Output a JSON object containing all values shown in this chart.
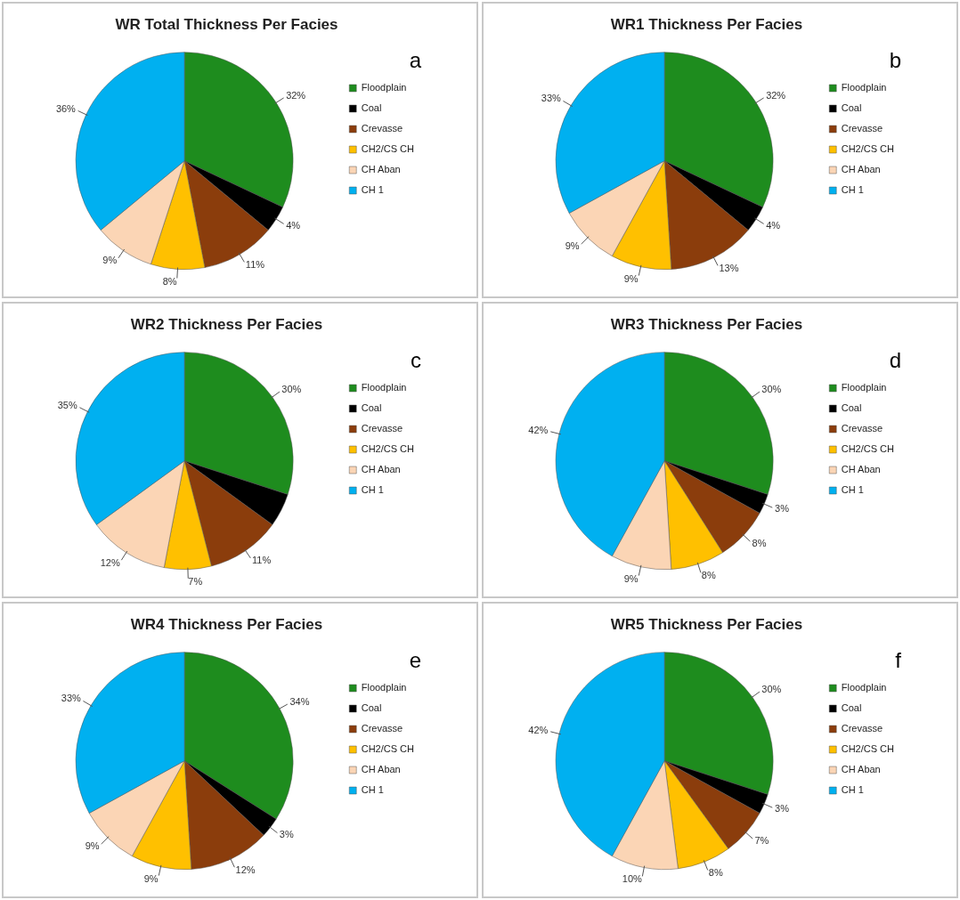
{
  "chart_data": [
    {
      "type": "pie",
      "title": "WR Total Thickness Per Facies",
      "categories": [
        "Floodplain",
        "Coal",
        "Crevasse",
        "CH2/CS CH",
        "CH Aban",
        "CH 1"
      ],
      "values": [
        32,
        4,
        11,
        8,
        9,
        36
      ],
      "value_labels": [
        "32%",
        "4%",
        "11%",
        "8%",
        "9%",
        "36%"
      ],
      "colors": [
        "#1e8c1e",
        "#000000",
        "#8b3d0c",
        "#ffc000",
        "#fbd5b5",
        "#00b0f0"
      ],
      "legend": "right",
      "annotations": [
        "a"
      ]
    },
    {
      "type": "pie",
      "title": "WR1 Thickness Per Facies",
      "categories": [
        "Floodplain",
        "Coal",
        "Crevasse",
        "CH2/CS CH",
        "CH Aban",
        "CH 1"
      ],
      "values": [
        32,
        4,
        13,
        9,
        9,
        33
      ],
      "value_labels": [
        "32%",
        "4%",
        "13%",
        "9%",
        "9%",
        "33%"
      ],
      "colors": [
        "#1e8c1e",
        "#000000",
        "#8b3d0c",
        "#ffc000",
        "#fbd5b5",
        "#00b0f0"
      ],
      "legend": "right",
      "annotations": [
        "b"
      ]
    },
    {
      "type": "pie",
      "title": "WR2 Thickness Per Facies",
      "categories": [
        "Floodplain",
        "Coal",
        "Crevasse",
        "CH2/CS CH",
        "CH Aban",
        "CH 1"
      ],
      "values": [
        30,
        5,
        11,
        7,
        12,
        35
      ],
      "value_labels": [
        "30%",
        null,
        "11%",
        "7%",
        "12%",
        "35%"
      ],
      "colors": [
        "#1e8c1e",
        "#000000",
        "#8b3d0c",
        "#ffc000",
        "#fbd5b5",
        "#00b0f0"
      ],
      "legend": "right",
      "annotations": [
        "c"
      ]
    },
    {
      "type": "pie",
      "title": "WR3 Thickness Per Facies",
      "categories": [
        "Floodplain",
        "Coal",
        "Crevasse",
        "CH2/CS CH",
        "CH Aban",
        "CH 1"
      ],
      "values": [
        30,
        3,
        8,
        8,
        9,
        42
      ],
      "value_labels": [
        "30%",
        "3%",
        "8%",
        "8%",
        "9%",
        "42%"
      ],
      "colors": [
        "#1e8c1e",
        "#000000",
        "#8b3d0c",
        "#ffc000",
        "#fbd5b5",
        "#00b0f0"
      ],
      "legend": "right",
      "annotations": [
        "d"
      ]
    },
    {
      "type": "pie",
      "title": "WR4 Thickness Per Facies",
      "categories": [
        "Floodplain",
        "Coal",
        "Crevasse",
        "CH2/CS CH",
        "CH Aban",
        "CH 1"
      ],
      "values": [
        34,
        3,
        12,
        9,
        9,
        33
      ],
      "value_labels": [
        "34%",
        "3%",
        "12%",
        "9%",
        "9%",
        "33%"
      ],
      "colors": [
        "#1e8c1e",
        "#000000",
        "#8b3d0c",
        "#ffc000",
        "#fbd5b5",
        "#00b0f0"
      ],
      "legend": "right",
      "annotations": [
        "e"
      ]
    },
    {
      "type": "pie",
      "title": "WR5 Thickness Per Facies",
      "categories": [
        "Floodplain",
        "Coal",
        "Crevasse",
        "CH2/CS CH",
        "CH Aban",
        "CH 1"
      ],
      "values": [
        30,
        3,
        7,
        8,
        10,
        42
      ],
      "value_labels": [
        "30%",
        "3%",
        "7%",
        "8%",
        "10%",
        "42%"
      ],
      "colors": [
        "#1e8c1e",
        "#000000",
        "#8b3d0c",
        "#ffc000",
        "#fbd5b5",
        "#00b0f0"
      ],
      "legend": "right",
      "annotations": [
        "f"
      ]
    }
  ]
}
